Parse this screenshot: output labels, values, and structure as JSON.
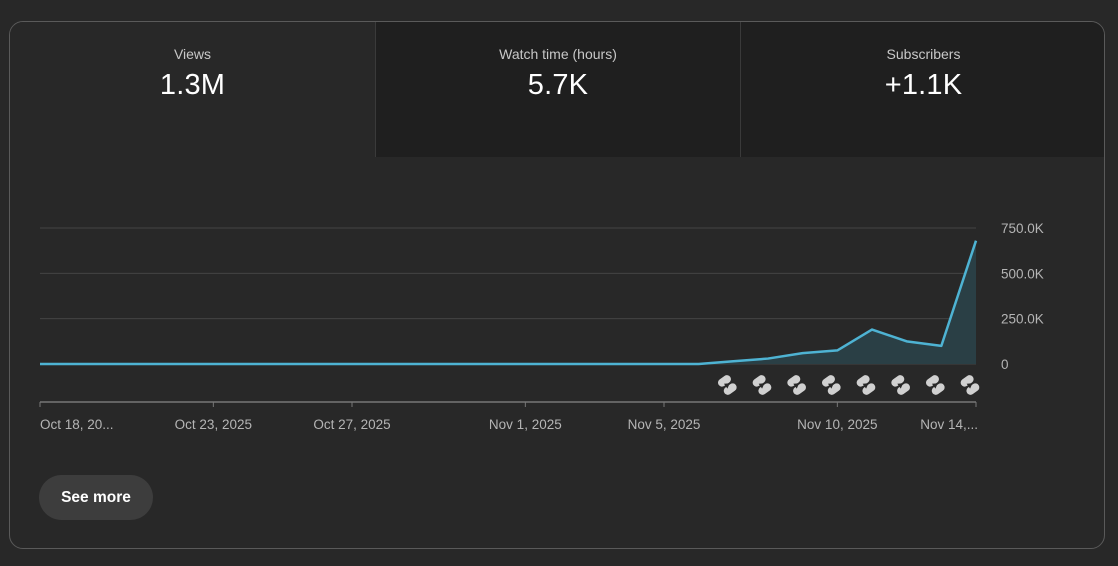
{
  "metrics": [
    {
      "label": "Views",
      "value": "1.3M",
      "active": true
    },
    {
      "label": "Watch time (hours)",
      "value": "5.7K",
      "active": false
    },
    {
      "label": "Subscribers",
      "value": "+1.1K",
      "active": false
    }
  ],
  "see_more_label": "See more",
  "chart_data": {
    "type": "area",
    "ylim": [
      0,
      750000
    ],
    "y_ticks": [
      {
        "label": "750.0K",
        "value": 750000
      },
      {
        "label": "500.0K",
        "value": 500000
      },
      {
        "label": "250.0K",
        "value": 250000
      },
      {
        "label": "0",
        "value": 0
      }
    ],
    "x_ticks": [
      {
        "label": "Oct 18, 20...",
        "day": 0
      },
      {
        "label": "Oct 23, 2025",
        "day": 5
      },
      {
        "label": "Oct 27, 2025",
        "day": 9
      },
      {
        "label": "Nov 1, 2025",
        "day": 14
      },
      {
        "label": "Nov 5, 2025",
        "day": 18
      },
      {
        "label": "Nov 10, 2025",
        "day": 23
      },
      {
        "label": "Nov 14,...",
        "day": 27
      }
    ],
    "x_days": [
      "Oct 18",
      "Oct 19",
      "Oct 20",
      "Oct 21",
      "Oct 22",
      "Oct 23",
      "Oct 24",
      "Oct 25",
      "Oct 26",
      "Oct 27",
      "Oct 28",
      "Oct 29",
      "Oct 30",
      "Oct 31",
      "Nov 1",
      "Nov 2",
      "Nov 3",
      "Nov 4",
      "Nov 5",
      "Nov 6",
      "Nov 7",
      "Nov 8",
      "Nov 9",
      "Nov 10",
      "Nov 11",
      "Nov 12",
      "Nov 13",
      "Nov 14"
    ],
    "values": [
      0,
      0,
      0,
      0,
      0,
      0,
      0,
      0,
      0,
      0,
      0,
      0,
      0,
      0,
      0,
      0,
      0,
      0,
      0,
      0,
      15000,
      30000,
      60000,
      75000,
      190000,
      125000,
      100000,
      680000
    ],
    "shorts_marker_days": [
      "Nov 7",
      "Nov 8",
      "Nov 9",
      "Nov 10",
      "Nov 11",
      "Nov 12",
      "Nov 13",
      "Nov 14"
    ],
    "line_color": "#4eb3d3",
    "fill_color": "#2a3f45",
    "grid": true
  }
}
